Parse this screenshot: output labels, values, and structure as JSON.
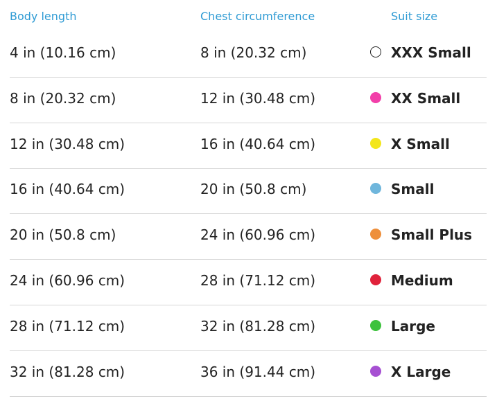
{
  "table": {
    "header": [
      "Body length",
      "Chest circumference",
      "Suit size"
    ],
    "rows": [
      {
        "body": "4 in (10.16 cm)",
        "chest": "8 in (20.32 cm)",
        "size": "XXX Small",
        "color": "#ffffff"
      },
      {
        "body": "8 in (20.32 cm)",
        "chest": "12 in (30.48 cm)",
        "size": "XX Small",
        "color": "#f23fa9"
      },
      {
        "body": "12 in (30.48 cm)",
        "chest": "16 in (40.64 cm)",
        "size": "X Small",
        "color": "#f3e61b"
      },
      {
        "body": "16 in (40.64 cm)",
        "chest": "20 in (50.8 cm)",
        "size": "Small",
        "color": "#6fb6dc"
      },
      {
        "body": "20 in (50.8 cm)",
        "chest": "24 in (60.96 cm)",
        "size": "Small Plus",
        "color": "#ee8f3b"
      },
      {
        "body": "24 in (60.96 cm)",
        "chest": "28 in (71.12 cm)",
        "size": "Medium",
        "color": "#e0223b"
      },
      {
        "body": "28 in (71.12 cm)",
        "chest": "32 in (81.28 cm)",
        "size": "Large",
        "color": "#3dc23d"
      },
      {
        "body": "32 in (81.28 cm)",
        "chest": "36 in (91.44 cm)",
        "size": "X Large",
        "color": "#a650d2"
      }
    ]
  }
}
